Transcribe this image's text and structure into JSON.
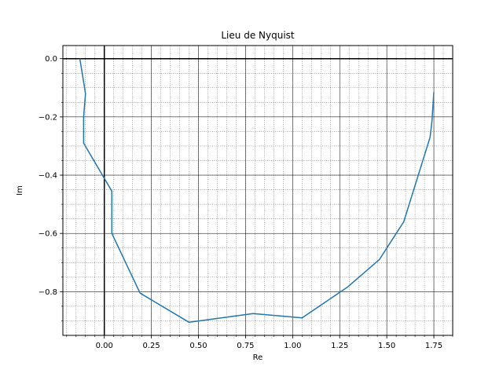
{
  "chart_data": {
    "type": "line",
    "title": "Lieu de Nyquist",
    "xlabel": "Re",
    "ylabel": "Im",
    "xlim": [
      -0.22,
      1.85
    ],
    "ylim": [
      -0.95,
      0.045
    ],
    "xticks": [
      0.0,
      0.25,
      0.5,
      0.75,
      1.0,
      1.25,
      1.5,
      1.75
    ],
    "xtick_labels": [
      "0.00",
      "0.25",
      "0.50",
      "0.75",
      "1.00",
      "1.25",
      "1.50",
      "1.75"
    ],
    "yticks": [
      0.0,
      -0.2,
      -0.4,
      -0.6,
      -0.8
    ],
    "ytick_labels": [
      "0.0",
      "−0.2",
      "−0.4",
      "−0.6",
      "−0.8"
    ],
    "grid": true,
    "minor_grid": true,
    "reference_lines": {
      "x": 0,
      "y": 0
    },
    "series": [
      {
        "color": "#1f77b4",
        "x": [
          -0.13,
          -0.1,
          -0.11,
          -0.11,
          0.04,
          0.04,
          0.19,
          0.45,
          0.79,
          1.05,
          1.29,
          1.46,
          1.59,
          1.73,
          1.74,
          1.75
        ],
        "y": [
          0.0,
          -0.12,
          -0.2,
          -0.29,
          -0.455,
          -0.6,
          -0.805,
          -0.905,
          -0.875,
          -0.89,
          -0.785,
          -0.69,
          -0.56,
          -0.27,
          -0.215,
          -0.115
        ]
      }
    ]
  }
}
